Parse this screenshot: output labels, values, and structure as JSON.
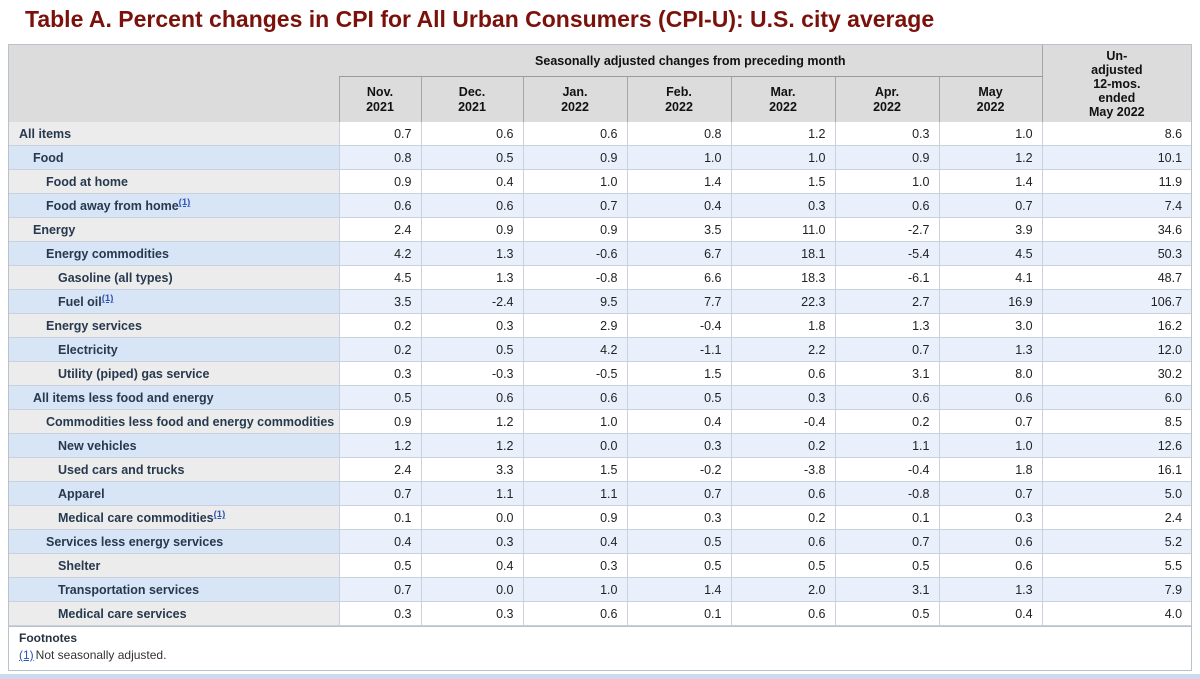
{
  "title": "Table A. Percent changes in CPI for All Urban Consumers (CPI-U): U.S. city average",
  "table": {
    "group_header": "Seasonally adjusted changes from preceding month",
    "unadjusted_header_lines": [
      "Un-",
      "adjusted",
      "12-mos.",
      "ended",
      "May 2022"
    ],
    "columns": [
      {
        "month": "Nov.",
        "year": "2021"
      },
      {
        "month": "Dec.",
        "year": "2021"
      },
      {
        "month": "Jan.",
        "year": "2022"
      },
      {
        "month": "Feb.",
        "year": "2022"
      },
      {
        "month": "Mar.",
        "year": "2022"
      },
      {
        "month": "Apr.",
        "year": "2022"
      },
      {
        "month": "May",
        "year": "2022"
      }
    ],
    "footnote_marker": "(1)",
    "rows": [
      {
        "label": "All items",
        "indent": 0,
        "fn": false,
        "values": [
          "0.7",
          "0.6",
          "0.6",
          "0.8",
          "1.2",
          "0.3",
          "1.0",
          "8.6"
        ]
      },
      {
        "label": "Food",
        "indent": 1,
        "fn": false,
        "values": [
          "0.8",
          "0.5",
          "0.9",
          "1.0",
          "1.0",
          "0.9",
          "1.2",
          "10.1"
        ]
      },
      {
        "label": "Food at home",
        "indent": 2,
        "fn": false,
        "values": [
          "0.9",
          "0.4",
          "1.0",
          "1.4",
          "1.5",
          "1.0",
          "1.4",
          "11.9"
        ]
      },
      {
        "label": "Food away from home",
        "indent": 2,
        "fn": true,
        "values": [
          "0.6",
          "0.6",
          "0.7",
          "0.4",
          "0.3",
          "0.6",
          "0.7",
          "7.4"
        ]
      },
      {
        "label": "Energy",
        "indent": 1,
        "fn": false,
        "values": [
          "2.4",
          "0.9",
          "0.9",
          "3.5",
          "11.0",
          "-2.7",
          "3.9",
          "34.6"
        ]
      },
      {
        "label": "Energy commodities",
        "indent": 2,
        "fn": false,
        "values": [
          "4.2",
          "1.3",
          "-0.6",
          "6.7",
          "18.1",
          "-5.4",
          "4.5",
          "50.3"
        ]
      },
      {
        "label": "Gasoline (all types)",
        "indent": 3,
        "fn": false,
        "values": [
          "4.5",
          "1.3",
          "-0.8",
          "6.6",
          "18.3",
          "-6.1",
          "4.1",
          "48.7"
        ]
      },
      {
        "label": "Fuel oil",
        "indent": 3,
        "fn": true,
        "values": [
          "3.5",
          "-2.4",
          "9.5",
          "7.7",
          "22.3",
          "2.7",
          "16.9",
          "106.7"
        ]
      },
      {
        "label": "Energy services",
        "indent": 2,
        "fn": false,
        "values": [
          "0.2",
          "0.3",
          "2.9",
          "-0.4",
          "1.8",
          "1.3",
          "3.0",
          "16.2"
        ]
      },
      {
        "label": "Electricity",
        "indent": 3,
        "fn": false,
        "values": [
          "0.2",
          "0.5",
          "4.2",
          "-1.1",
          "2.2",
          "0.7",
          "1.3",
          "12.0"
        ]
      },
      {
        "label": "Utility (piped) gas service",
        "indent": 3,
        "fn": false,
        "values": [
          "0.3",
          "-0.3",
          "-0.5",
          "1.5",
          "0.6",
          "3.1",
          "8.0",
          "30.2"
        ]
      },
      {
        "label": "All items less food and energy",
        "indent": 1,
        "fn": false,
        "values": [
          "0.5",
          "0.6",
          "0.6",
          "0.5",
          "0.3",
          "0.6",
          "0.6",
          "6.0"
        ]
      },
      {
        "label": "Commodities less food and energy commodities",
        "indent": 2,
        "fn": false,
        "values": [
          "0.9",
          "1.2",
          "1.0",
          "0.4",
          "-0.4",
          "0.2",
          "0.7",
          "8.5"
        ]
      },
      {
        "label": "New vehicles",
        "indent": 3,
        "fn": false,
        "values": [
          "1.2",
          "1.2",
          "0.0",
          "0.3",
          "0.2",
          "1.1",
          "1.0",
          "12.6"
        ]
      },
      {
        "label": "Used cars and trucks",
        "indent": 3,
        "fn": false,
        "values": [
          "2.4",
          "3.3",
          "1.5",
          "-0.2",
          "-3.8",
          "-0.4",
          "1.8",
          "16.1"
        ]
      },
      {
        "label": "Apparel",
        "indent": 3,
        "fn": false,
        "values": [
          "0.7",
          "1.1",
          "1.1",
          "0.7",
          "0.6",
          "-0.8",
          "0.7",
          "5.0"
        ]
      },
      {
        "label": "Medical care commodities",
        "indent": 3,
        "fn": true,
        "values": [
          "0.1",
          "0.0",
          "0.9",
          "0.3",
          "0.2",
          "0.1",
          "0.3",
          "2.4"
        ]
      },
      {
        "label": "Services less energy services",
        "indent": 2,
        "fn": false,
        "values": [
          "0.4",
          "0.3",
          "0.4",
          "0.5",
          "0.6",
          "0.7",
          "0.6",
          "5.2"
        ]
      },
      {
        "label": "Shelter",
        "indent": 3,
        "fn": false,
        "values": [
          "0.5",
          "0.4",
          "0.3",
          "0.5",
          "0.5",
          "0.5",
          "0.6",
          "5.5"
        ]
      },
      {
        "label": "Transportation services",
        "indent": 3,
        "fn": false,
        "values": [
          "0.7",
          "0.0",
          "1.0",
          "1.4",
          "2.0",
          "3.1",
          "1.3",
          "7.9"
        ]
      },
      {
        "label": "Medical care services",
        "indent": 3,
        "fn": false,
        "values": [
          "0.3",
          "0.3",
          "0.6",
          "0.1",
          "0.6",
          "0.5",
          "0.4",
          "4.0"
        ]
      }
    ]
  },
  "footnotes": {
    "heading": "Footnotes",
    "ref": "(1)",
    "text": "Not seasonally adjusted."
  },
  "colors": {
    "title": "#7b110b",
    "link": "#2f55b4",
    "header_bg": "#dcdcdc",
    "stripe_gray_label": "#ececec",
    "stripe_blue_label": "#d8e5f7",
    "stripe_blue_data": "#e9f0fb",
    "bottom_strip": "#cdd9ec"
  }
}
